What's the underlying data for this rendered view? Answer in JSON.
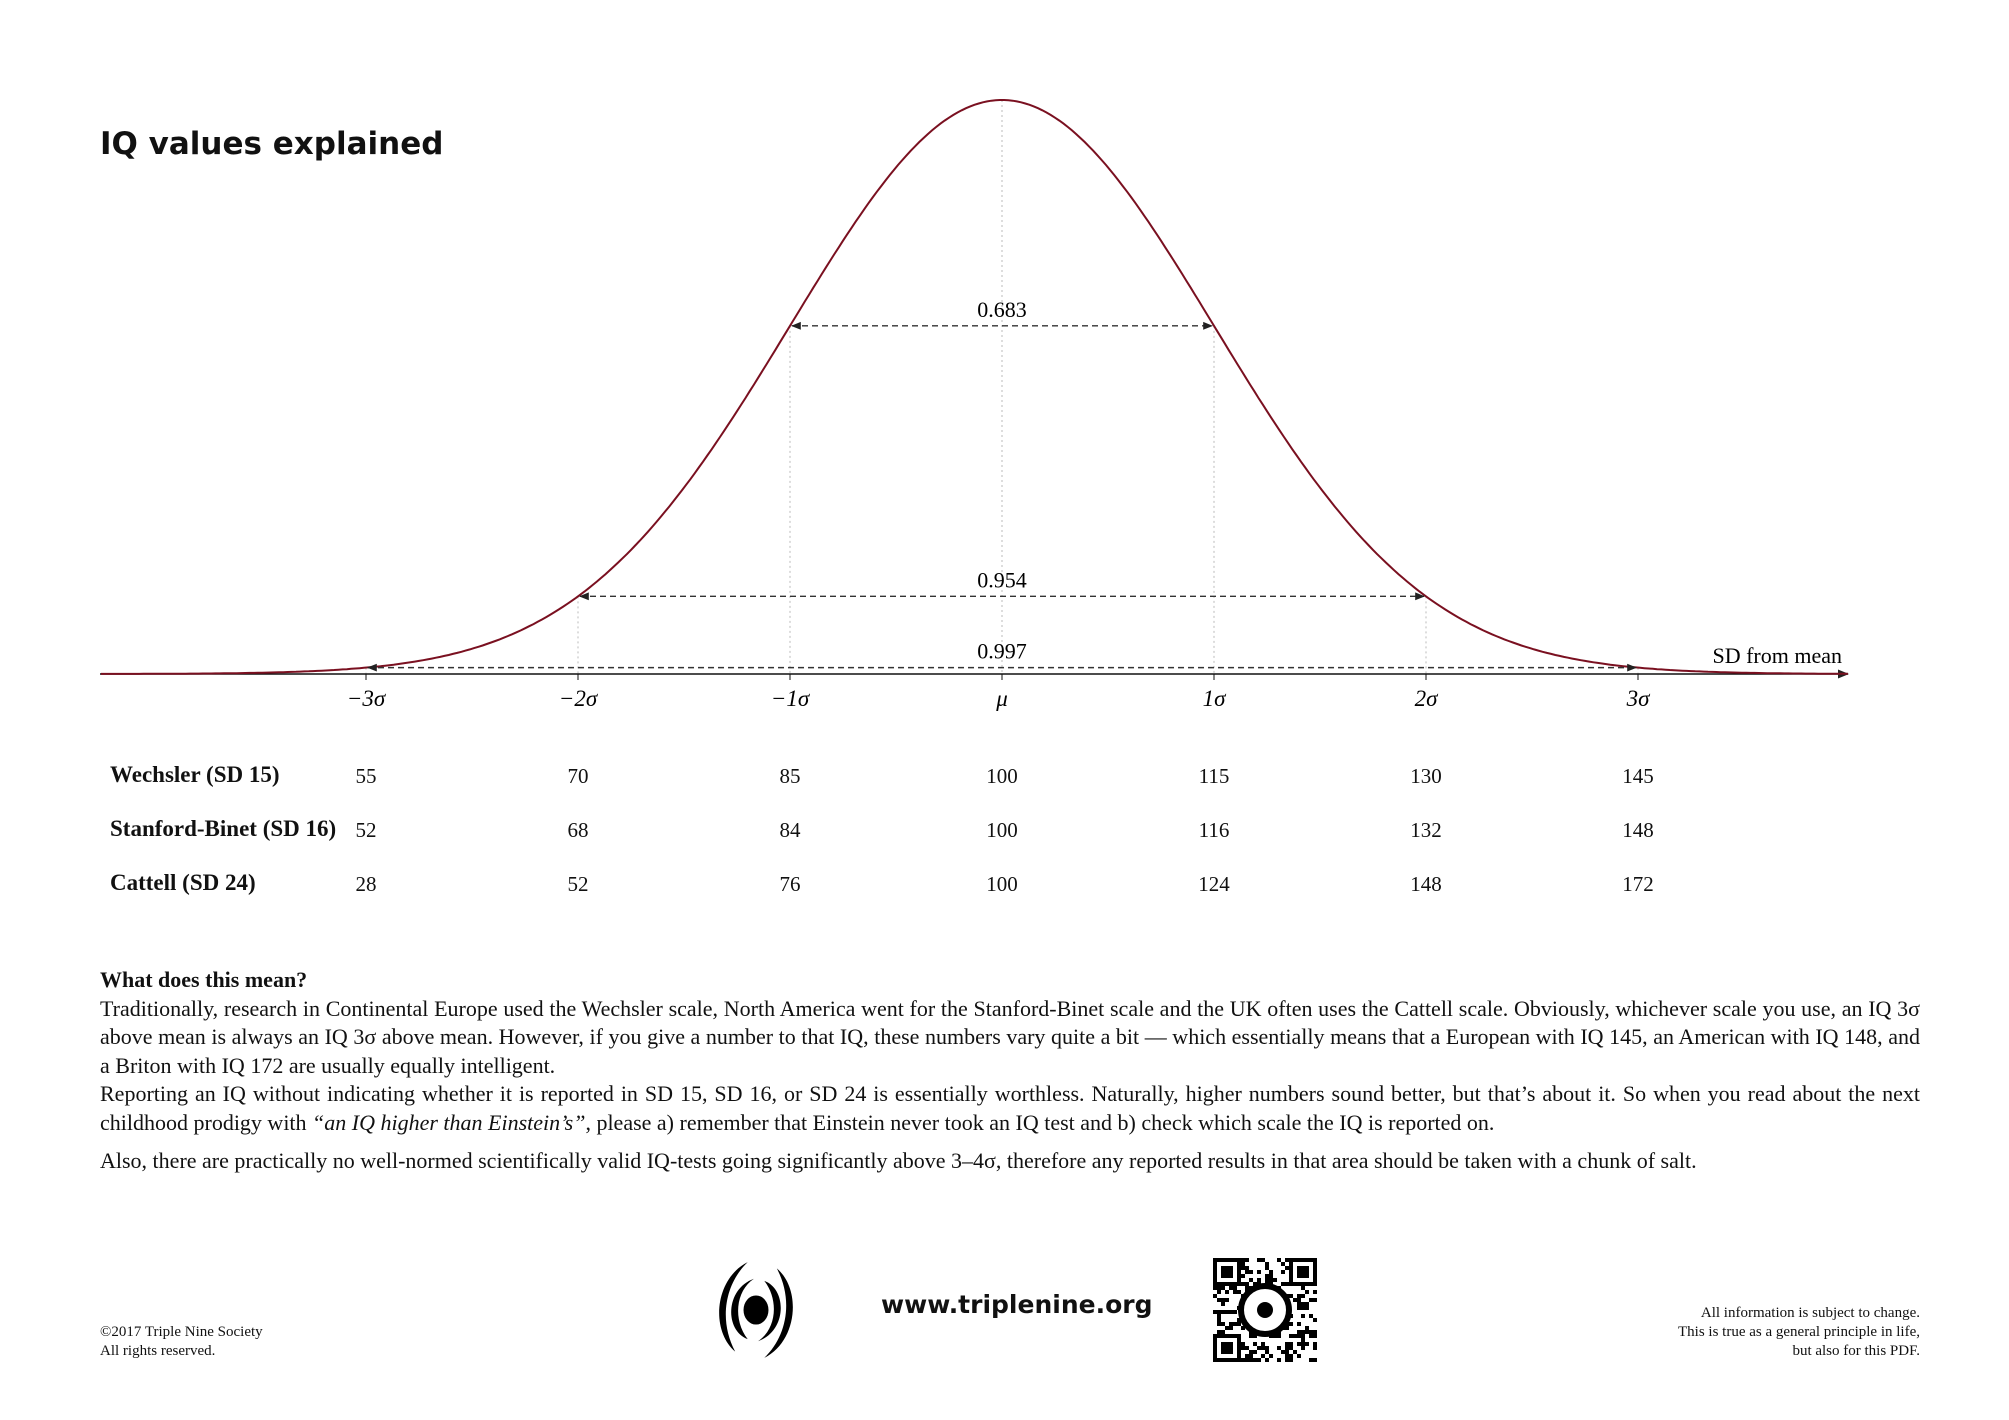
{
  "title": "IQ values explained",
  "chart_data": {
    "type": "line",
    "title": "IQ values explained",
    "xlabel": "SD from mean",
    "ylabel": "",
    "series": "standard normal density",
    "curve_color": "#7a1020",
    "xlim": [
      -4.25,
      4.0
    ],
    "x_ticks": [
      -3,
      -2,
      -1,
      0,
      1,
      2,
      3
    ],
    "x_tick_labels": [
      "−3σ",
      "−2σ",
      "−1σ",
      "μ",
      "1σ",
      "2σ",
      "3σ"
    ],
    "intervals": [
      {
        "from": -1,
        "to": 1,
        "label": "0.683"
      },
      {
        "from": -2,
        "to": 2,
        "label": "0.954"
      },
      {
        "from": -3,
        "to": 3,
        "label": "0.997"
      }
    ],
    "grid": false
  },
  "table": {
    "rows": [
      {
        "label": "Wechsler (SD 15)",
        "values": [
          "55",
          "70",
          "85",
          "100",
          "115",
          "130",
          "145"
        ]
      },
      {
        "label": "Stanford-Binet (SD 16)",
        "values": [
          "52",
          "68",
          "84",
          "100",
          "116",
          "132",
          "148"
        ]
      },
      {
        "label": "Cattell (SD 24)",
        "values": [
          "28",
          "52",
          "76",
          "100",
          "124",
          "148",
          "172"
        ]
      }
    ]
  },
  "text": {
    "heading": "What does this mean?",
    "p1": "Traditionally, research in Continental Europe used the Wechsler scale, North America went for the Stanford-Binet scale and the UK often uses the Cattell scale. Obviously, whichever scale you use, an IQ 3σ above mean is always an IQ 3σ above mean. However, if you give a number to that IQ, these numbers vary quite a bit — which essentially means that a European with IQ 145, an American with IQ 148, and a Briton with IQ 172 are usually equally intelligent.",
    "p2_a": "Reporting an IQ without indicating whether it is reported in SD 15, SD 16, or SD 24 is essentially worthless. Naturally, higher numbers sound better, but that’s about it. So when you read about the next childhood prodigy with ",
    "p2_quote": "“an IQ higher than Einstein’s”",
    "p2_b": ", please a) remember that Einstein never took an IQ test and b) check which scale the IQ is reported on.",
    "p3": "Also, there are practically no well-normed scientifically valid IQ-tests going significantly above 3–4σ, therefore any reported results in that area should be taken with a chunk of salt."
  },
  "footer": {
    "copyright_1": "©2017 Triple Nine Society",
    "copyright_2": "All rights reserved.",
    "url": "www.triplenine.org",
    "logo": "spiral-logo-icon",
    "qr": "qr-code-icon",
    "note_1": "All information is subject to change.",
    "note_2": "This is true as a general principle in life,",
    "note_3": "but also for this PDF."
  }
}
